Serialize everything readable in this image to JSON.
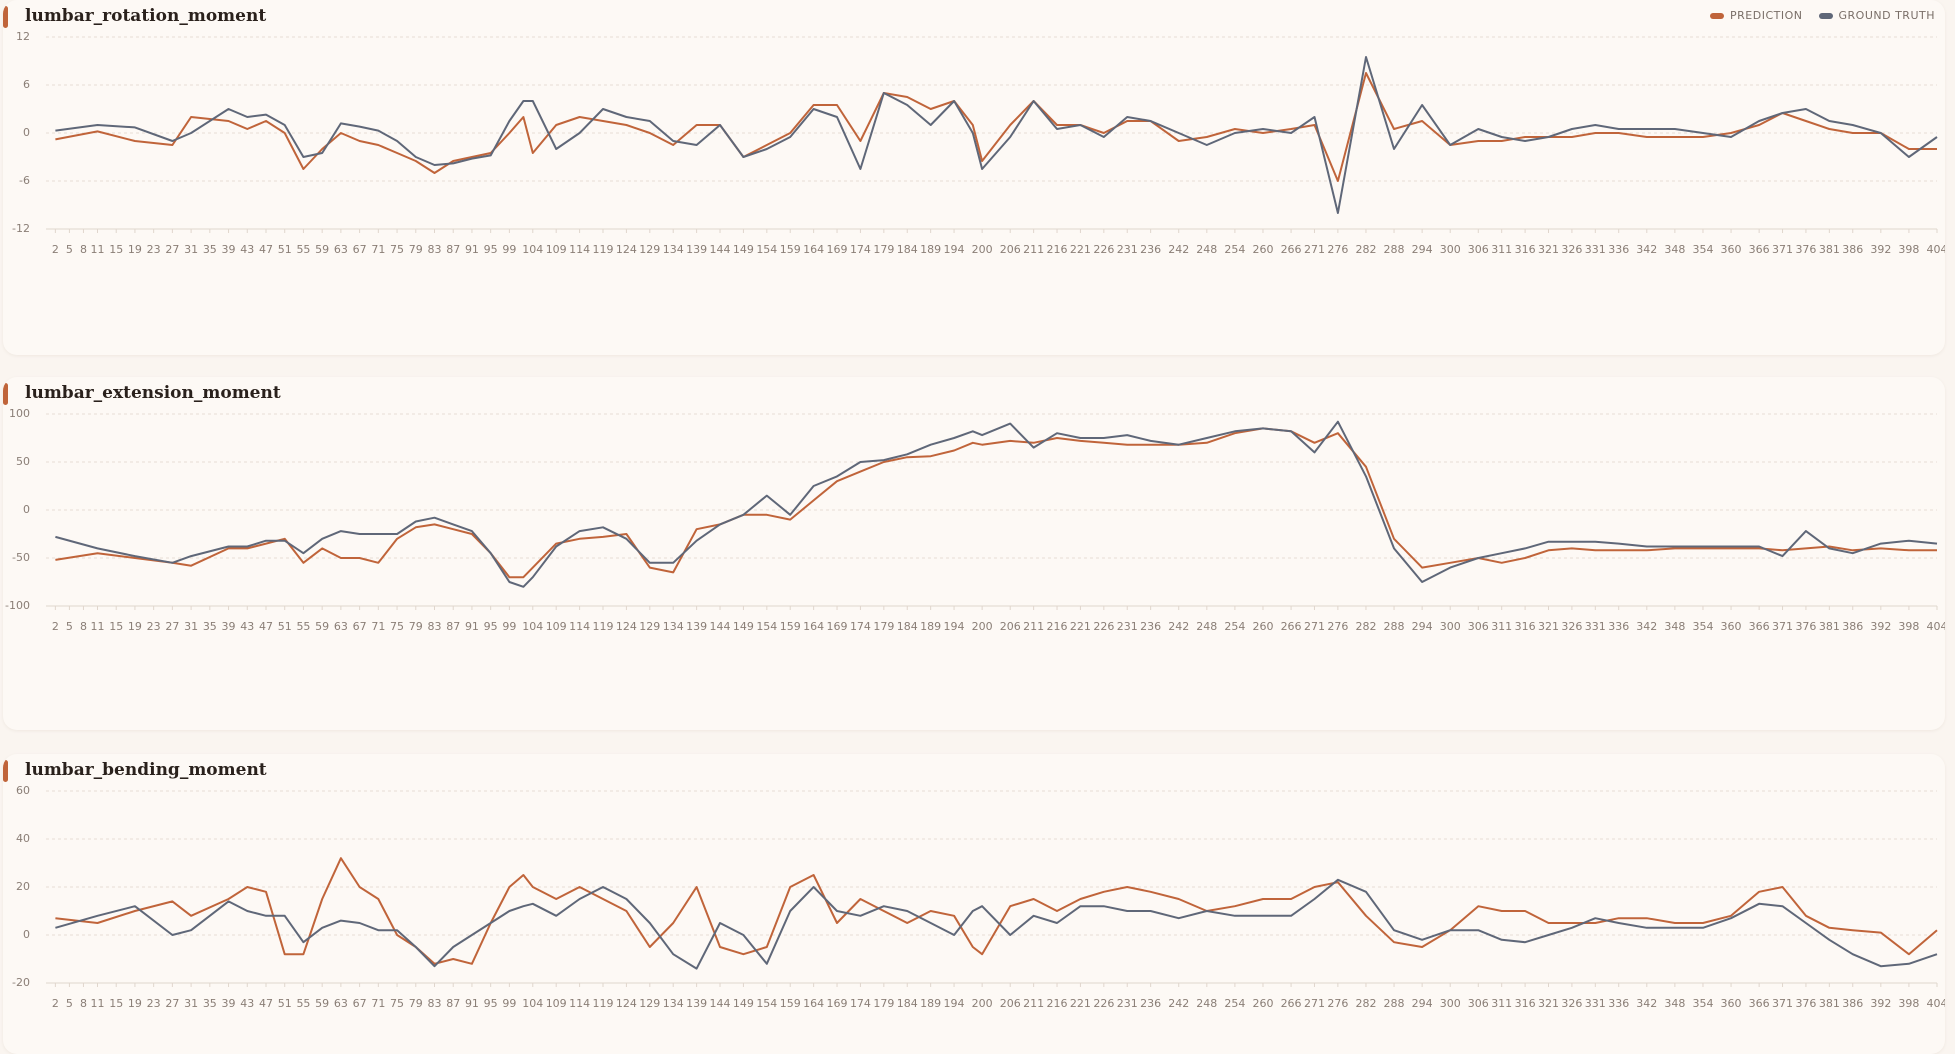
{
  "chart_data": [
    {
      "type": "line",
      "title": "lumbar_rotation_moment",
      "legend": "top-right",
      "grid": true,
      "x": [
        2,
        11,
        19,
        27,
        31,
        39,
        43,
        47,
        51,
        55,
        59,
        63,
        67,
        71,
        75,
        79,
        83,
        87,
        91,
        95,
        99,
        102,
        104,
        109,
        114,
        119,
        124,
        129,
        134,
        139,
        144,
        149,
        154,
        159,
        164,
        169,
        174,
        179,
        184,
        189,
        194,
        198,
        200,
        206,
        211,
        216,
        221,
        226,
        231,
        236,
        242,
        248,
        254,
        260,
        266,
        271,
        276,
        282,
        288,
        294,
        300,
        306,
        311,
        316,
        321,
        326,
        331,
        336,
        342,
        348,
        354,
        360,
        366,
        371,
        376,
        381,
        386,
        392,
        398,
        404
      ],
      "xlim": [
        0,
        404
      ],
      "xticks": [
        2,
        5,
        8,
        11,
        15,
        19,
        23,
        27,
        31,
        35,
        39,
        43,
        47,
        51,
        55,
        59,
        63,
        67,
        71,
        75,
        79,
        83,
        87,
        91,
        95,
        99,
        104,
        109,
        114,
        119,
        124,
        129,
        134,
        139,
        144,
        149,
        154,
        159,
        164,
        169,
        174,
        179,
        184,
        189,
        194,
        200,
        206,
        211,
        216,
        221,
        226,
        231,
        236,
        242,
        248,
        254,
        260,
        266,
        271,
        276,
        282,
        288,
        294,
        300,
        306,
        311,
        316,
        321,
        326,
        331,
        336,
        342,
        348,
        354,
        360,
        366,
        371,
        376,
        381,
        386,
        392,
        398,
        404
      ],
      "ylim": [
        -12,
        12
      ],
      "yticks": [
        -12,
        -6,
        0,
        6,
        12
      ],
      "series": [
        {
          "name": "PREDICTION",
          "color": "#c0643a",
          "values": [
            -0.8,
            0.2,
            -1,
            -1.5,
            2,
            1.5,
            0.5,
            1.5,
            0,
            -4.5,
            -2,
            0,
            -1,
            -1.5,
            -2.5,
            -3.5,
            -5,
            -3.5,
            -3,
            -2.5,
            0,
            2,
            -2.5,
            1,
            2,
            1.5,
            1,
            0,
            -1.5,
            1,
            1,
            -3,
            -1.5,
            0,
            3.5,
            3.5,
            -1,
            5,
            4.5,
            3,
            4,
            1,
            -3.5,
            1,
            4,
            1,
            1,
            0,
            1.5,
            1.5,
            -1,
            -0.5,
            0.5,
            0,
            0.5,
            1,
            -6,
            7.5,
            0.5,
            1.5,
            -1.5,
            -1,
            -1,
            -0.5,
            -0.5,
            -0.5,
            0,
            0,
            -0.5,
            -0.5,
            -0.5,
            0,
            1,
            2.5,
            1.5,
            0.5,
            0,
            0,
            -2,
            -2
          ]
        },
        {
          "name": "GROUND TRUTH",
          "color": "#5f6778",
          "values": [
            0.3,
            1,
            0.7,
            -1,
            0,
            3,
            2,
            2.3,
            1,
            -3,
            -2.5,
            1.2,
            0.8,
            0.3,
            -1,
            -3,
            -4,
            -3.8,
            -3.2,
            -2.8,
            1.5,
            4,
            4,
            -2,
            0,
            3,
            2,
            1.5,
            -1,
            -1.5,
            1,
            -3,
            -2,
            -0.5,
            3,
            2,
            -4.5,
            5,
            3.5,
            1,
            4,
            0,
            -4.5,
            -0.5,
            4,
            0.5,
            1,
            -0.5,
            2,
            1.5,
            0,
            -1.5,
            0,
            0.5,
            0,
            2,
            -10,
            9.5,
            -2,
            3.5,
            -1.5,
            0.5,
            -0.5,
            -1,
            -0.5,
            0.5,
            1,
            0.5,
            0.5,
            0.5,
            0,
            -0.5,
            1.5,
            2.5,
            3,
            1.5,
            1,
            0,
            -3,
            -0.5
          ]
        }
      ]
    },
    {
      "type": "line",
      "title": "lumbar_extension_moment",
      "grid": true,
      "x": [
        2,
        11,
        19,
        27,
        31,
        39,
        43,
        47,
        51,
        55,
        59,
        63,
        67,
        71,
        75,
        79,
        83,
        87,
        91,
        95,
        99,
        102,
        104,
        109,
        114,
        119,
        124,
        129,
        134,
        139,
        144,
        149,
        154,
        159,
        164,
        169,
        174,
        179,
        184,
        189,
        194,
        198,
        200,
        206,
        211,
        216,
        221,
        226,
        231,
        236,
        242,
        248,
        254,
        260,
        266,
        271,
        276,
        282,
        288,
        294,
        300,
        306,
        311,
        316,
        321,
        326,
        331,
        336,
        342,
        348,
        354,
        360,
        366,
        371,
        376,
        381,
        386,
        392,
        398,
        404
      ],
      "xlim": [
        0,
        404
      ],
      "xticks": [
        2,
        5,
        8,
        11,
        15,
        19,
        23,
        27,
        31,
        35,
        39,
        43,
        47,
        51,
        55,
        59,
        63,
        67,
        71,
        75,
        79,
        83,
        87,
        91,
        95,
        99,
        104,
        109,
        114,
        119,
        124,
        129,
        134,
        139,
        144,
        149,
        154,
        159,
        164,
        169,
        174,
        179,
        184,
        189,
        194,
        200,
        206,
        211,
        216,
        221,
        226,
        231,
        236,
        242,
        248,
        254,
        260,
        266,
        271,
        276,
        282,
        288,
        294,
        300,
        306,
        311,
        316,
        321,
        326,
        331,
        336,
        342,
        348,
        354,
        360,
        366,
        371,
        376,
        381,
        386,
        392,
        398,
        404
      ],
      "ylim": [
        -100,
        100
      ],
      "yticks": [
        -100,
        -50,
        0,
        50,
        100
      ],
      "series": [
        {
          "color": "#c0643a",
          "values": [
            -52,
            -45,
            -50,
            -55,
            -58,
            -40,
            -40,
            -35,
            -30,
            -55,
            -40,
            -50,
            -50,
            -55,
            -30,
            -18,
            -15,
            -20,
            -25,
            -45,
            -70,
            -70,
            -60,
            -35,
            -30,
            -28,
            -25,
            -60,
            -65,
            -20,
            -15,
            -5,
            -5,
            -10,
            10,
            30,
            40,
            50,
            55,
            56,
            62,
            70,
            68,
            72,
            70,
            75,
            72,
            70,
            68,
            68,
            68,
            70,
            80,
            85,
            82,
            70,
            80,
            45,
            -30,
            -60,
            -55,
            -50,
            -55,
            -50,
            -42,
            -40,
            -42,
            -42,
            -42,
            -40,
            -40,
            -40,
            -40,
            -42,
            -40,
            -38,
            -42,
            -40,
            -42,
            -42
          ]
        },
        {
          "color": "#5f6778",
          "values": [
            -28,
            -40,
            -48,
            -55,
            -48,
            -38,
            -38,
            -32,
            -32,
            -45,
            -30,
            -22,
            -25,
            -25,
            -25,
            -12,
            -8,
            -15,
            -22,
            -45,
            -75,
            -80,
            -70,
            -38,
            -22,
            -18,
            -30,
            -55,
            -55,
            -32,
            -15,
            -5,
            15,
            -5,
            25,
            35,
            50,
            52,
            58,
            68,
            75,
            82,
            78,
            90,
            65,
            80,
            75,
            75,
            78,
            72,
            68,
            75,
            82,
            85,
            82,
            60,
            92,
            35,
            -40,
            -75,
            -60,
            -50,
            -45,
            -40,
            -33,
            -33,
            -33,
            -35,
            -38,
            -38,
            -38,
            -38,
            -38,
            -48,
            -22,
            -40,
            -45,
            -35,
            -32,
            -35
          ]
        }
      ]
    },
    {
      "type": "line",
      "title": "lumbar_bending_moment",
      "grid": true,
      "x": [
        2,
        11,
        19,
        27,
        31,
        39,
        43,
        47,
        51,
        55,
        59,
        63,
        67,
        71,
        75,
        79,
        83,
        87,
        91,
        95,
        99,
        102,
        104,
        109,
        114,
        119,
        124,
        129,
        134,
        139,
        144,
        149,
        154,
        159,
        164,
        169,
        174,
        179,
        184,
        189,
        194,
        198,
        200,
        206,
        211,
        216,
        221,
        226,
        231,
        236,
        242,
        248,
        254,
        260,
        266,
        271,
        276,
        282,
        288,
        294,
        300,
        306,
        311,
        316,
        321,
        326,
        331,
        336,
        342,
        348,
        354,
        360,
        366,
        371,
        376,
        381,
        386,
        392,
        398,
        404
      ],
      "xlim": [
        0,
        404
      ],
      "xticks": [
        2,
        5,
        8,
        11,
        15,
        19,
        23,
        27,
        31,
        35,
        39,
        43,
        47,
        51,
        55,
        59,
        63,
        67,
        71,
        75,
        79,
        83,
        87,
        91,
        95,
        99,
        104,
        109,
        114,
        119,
        124,
        129,
        134,
        139,
        144,
        149,
        154,
        159,
        164,
        169,
        174,
        179,
        184,
        189,
        194,
        200,
        206,
        211,
        216,
        221,
        226,
        231,
        236,
        242,
        248,
        254,
        260,
        266,
        271,
        276,
        282,
        288,
        294,
        300,
        306,
        311,
        316,
        321,
        326,
        331,
        336,
        342,
        348,
        354,
        360,
        366,
        371,
        376,
        381,
        386,
        392,
        398,
        404
      ],
      "ylim": [
        -20,
        60
      ],
      "yticks": [
        -20,
        0,
        20,
        40,
        60
      ],
      "series": [
        {
          "color": "#c0643a",
          "values": [
            7,
            5,
            10,
            14,
            8,
            15,
            20,
            18,
            -8,
            -8,
            15,
            32,
            20,
            15,
            0,
            -5,
            -12,
            -10,
            -12,
            5,
            20,
            25,
            20,
            15,
            20,
            15,
            10,
            -5,
            5,
            20,
            -5,
            -8,
            -5,
            20,
            25,
            5,
            15,
            10,
            5,
            10,
            8,
            -5,
            -8,
            12,
            15,
            10,
            15,
            18,
            20,
            18,
            15,
            10,
            12,
            15,
            15,
            20,
            22,
            8,
            -3,
            -5,
            2,
            12,
            10,
            10,
            5,
            5,
            5,
            7,
            7,
            5,
            5,
            8,
            18,
            20,
            8,
            3,
            2,
            1,
            -8,
            2
          ]
        },
        {
          "color": "#5f6778",
          "values": [
            3,
            8,
            12,
            0,
            2,
            14,
            10,
            8,
            8,
            -3,
            3,
            6,
            5,
            2,
            2,
            -5,
            -13,
            -5,
            0,
            5,
            10,
            12,
            13,
            8,
            15,
            20,
            15,
            5,
            -8,
            -14,
            5,
            0,
            -12,
            10,
            20,
            10,
            8,
            12,
            10,
            5,
            0,
            10,
            12,
            0,
            8,
            5,
            12,
            12,
            10,
            10,
            7,
            10,
            8,
            8,
            8,
            15,
            23,
            18,
            2,
            -2,
            2,
            2,
            -2,
            -3,
            0,
            3,
            7,
            5,
            3,
            3,
            3,
            7,
            13,
            12,
            5,
            -2,
            -8,
            -13,
            -12,
            -8
          ]
        }
      ]
    }
  ]
}
